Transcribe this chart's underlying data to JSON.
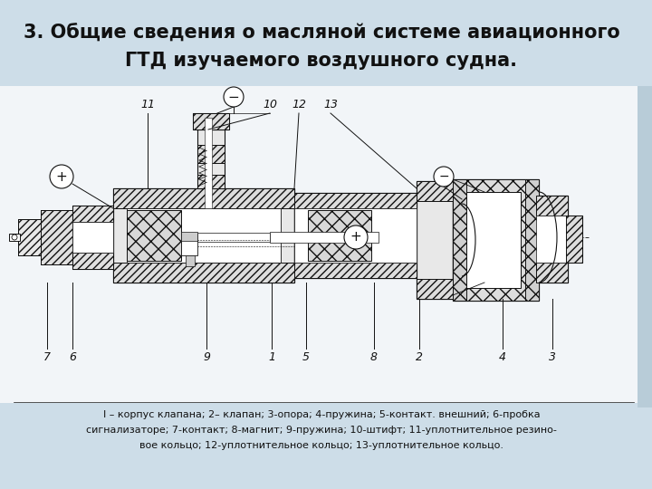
{
  "title_line1": "3. Общие сведения о масляной системе авиационного",
  "title_line2": "ГТД изучаемого воздушного судна.",
  "caption_line1": "I – корпус клапана; 2– клапан; 3-опора; 4-пружина; 5-контакт. внешний; 6-пробка",
  "caption_line2": "сигнализаторе; 7-контакт; 8-магнит; 9-пружина; 10-штифт; 11-уплотнительное резино-",
  "caption_line3": "вое кольцо; 12-уплотнительное кольцо; 13-уплотнительное кольцо.",
  "bg_top": "#d4e5f2",
  "bg_diagram": "#f5f5f5",
  "bg_bottom": "#d4e5f2",
  "lc": "#111111",
  "title_fontsize": 15,
  "caption_fontsize": 8,
  "fig_width": 7.2,
  "fig_height": 5.4,
  "dpi": 100
}
